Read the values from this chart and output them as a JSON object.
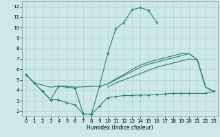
{
  "xlabel": "Humidex (Indice chaleur)",
  "line_color": "#2e7d6d",
  "bg_color": "#cce8e8",
  "grid_color": "#b0d0d0",
  "ylim": [
    1.5,
    12.5
  ],
  "xlim": [
    -0.5,
    23.5
  ],
  "yticks": [
    2,
    3,
    4,
    5,
    6,
    7,
    8,
    9,
    10,
    11,
    12
  ],
  "xticks": [
    0,
    1,
    2,
    3,
    4,
    5,
    6,
    7,
    8,
    9,
    10,
    11,
    12,
    13,
    14,
    15,
    16,
    17,
    18,
    19,
    20,
    21,
    22,
    23
  ],
  "series": [
    {
      "x": [
        0,
        1,
        2,
        3,
        4,
        5,
        6,
        7,
        8,
        9,
        10,
        11,
        12,
        13,
        14,
        15,
        16
      ],
      "y": [
        5.5,
        4.7,
        3.9,
        3.1,
        4.4,
        4.3,
        4.2,
        1.75,
        1.7,
        4.4,
        7.5,
        9.9,
        10.5,
        11.7,
        11.9,
        11.65,
        10.5
      ],
      "marker": true
    },
    {
      "x": [
        0,
        1,
        2,
        3,
        4,
        5,
        6,
        7,
        8,
        9,
        10,
        11,
        12,
        13,
        14,
        15,
        16,
        17,
        18,
        19,
        20,
        22,
        23
      ],
      "y": [
        5.5,
        4.7,
        3.9,
        3.1,
        3.1,
        2.8,
        2.6,
        1.75,
        1.7,
        2.5,
        3.3,
        3.4,
        3.5,
        3.5,
        3.55,
        3.55,
        3.6,
        3.65,
        3.7,
        3.7,
        3.7,
        3.7,
        3.9
      ],
      "marker": true
    },
    {
      "x": [
        0,
        1,
        3,
        4,
        5,
        6,
        9,
        10,
        11,
        12,
        13,
        14,
        15,
        16,
        17,
        18,
        19,
        20,
        21,
        22,
        23
      ],
      "y": [
        5.5,
        4.7,
        4.3,
        4.4,
        4.4,
        4.3,
        4.4,
        4.6,
        5.1,
        5.5,
        6.0,
        6.4,
        6.7,
        6.9,
        7.1,
        7.3,
        7.5,
        7.5,
        6.9,
        4.3,
        3.9
      ],
      "marker": false
    },
    {
      "x": [
        10,
        11,
        12,
        13,
        14,
        15,
        16,
        17,
        18,
        19,
        20,
        21,
        22,
        23
      ],
      "y": [
        4.6,
        5.0,
        5.4,
        5.8,
        6.2,
        6.5,
        6.7,
        6.9,
        7.1,
        7.3,
        7.5,
        6.9,
        4.3,
        3.9
      ],
      "marker": false
    },
    {
      "x": [
        10,
        11,
        12,
        13,
        14,
        15,
        16,
        17,
        18,
        19,
        20,
        21,
        22,
        23
      ],
      "y": [
        4.3,
        4.7,
        5.0,
        5.3,
        5.6,
        5.9,
        6.2,
        6.4,
        6.6,
        6.8,
        7.0,
        6.9,
        4.3,
        3.9
      ],
      "marker": false
    }
  ]
}
